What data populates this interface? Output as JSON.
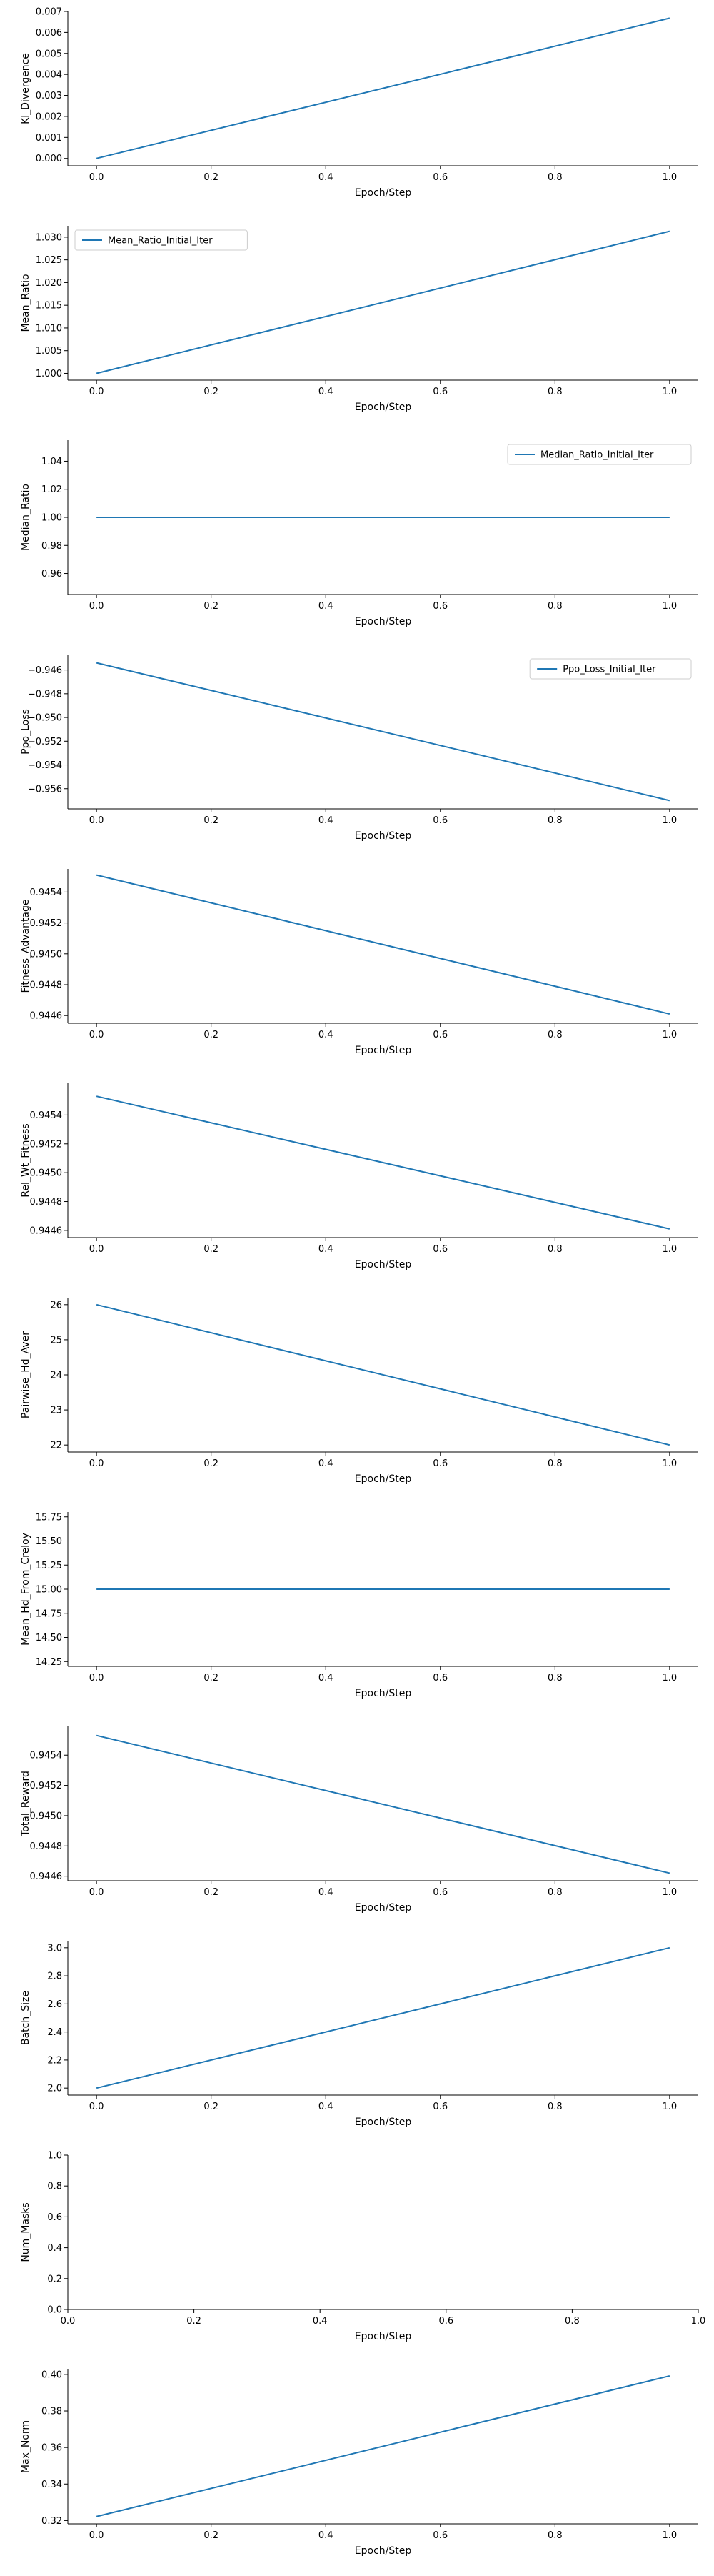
{
  "colors": {
    "line": "#1f77b4",
    "axis": "#000000",
    "legend_border": "#cccccc"
  },
  "chart_data": [
    {
      "type": "line",
      "xlabel": "Epoch/Step",
      "ylabel": "Kl_Divergence",
      "xlim": [
        -0.05,
        1.05
      ],
      "ylim": [
        -0.00035,
        0.007
      ],
      "xticks": [
        0.0,
        0.2,
        0.4,
        0.6,
        0.8,
        1.0
      ],
      "xtick_labels": [
        "0.0",
        "0.2",
        "0.4",
        "0.6",
        "0.8",
        "1.0"
      ],
      "yticks": [
        0.0,
        0.001,
        0.002,
        0.003,
        0.004,
        0.005,
        0.006,
        0.007
      ],
      "ytick_labels": [
        "0.000",
        "0.001",
        "0.002",
        "0.003",
        "0.004",
        "0.005",
        "0.006",
        "0.007"
      ],
      "legend": "none",
      "series": [
        {
          "x": [
            0.0,
            1.0
          ],
          "y": [
            0.0,
            0.00668
          ]
        }
      ]
    },
    {
      "type": "line",
      "xlabel": "Epoch/Step",
      "ylabel": "Mean_Ratio",
      "xlim": [
        -0.05,
        1.05
      ],
      "ylim": [
        0.9985,
        1.0325
      ],
      "xticks": [
        0.0,
        0.2,
        0.4,
        0.6,
        0.8,
        1.0
      ],
      "xtick_labels": [
        "0.0",
        "0.2",
        "0.4",
        "0.6",
        "0.8",
        "1.0"
      ],
      "yticks": [
        1.0,
        1.005,
        1.01,
        1.015,
        1.02,
        1.025,
        1.03
      ],
      "ytick_labels": [
        "1.000",
        "1.005",
        "1.010",
        "1.015",
        "1.020",
        "1.025",
        "1.030"
      ],
      "legend": "top-left",
      "series": [
        {
          "name": "Mean_Ratio_Initial_Iter",
          "x": [
            0.0,
            1.0
          ],
          "y": [
            1.0,
            1.0313
          ]
        }
      ]
    },
    {
      "type": "line",
      "xlabel": "Epoch/Step",
      "ylabel": "Median_Ratio",
      "xlim": [
        -0.05,
        1.05
      ],
      "ylim": [
        0.945,
        1.055
      ],
      "xticks": [
        0.0,
        0.2,
        0.4,
        0.6,
        0.8,
        1.0
      ],
      "xtick_labels": [
        "0.0",
        "0.2",
        "0.4",
        "0.6",
        "0.8",
        "1.0"
      ],
      "yticks": [
        0.96,
        0.98,
        1.0,
        1.02,
        1.04
      ],
      "ytick_labels": [
        "0.96",
        "0.98",
        "1.00",
        "1.02",
        "1.04"
      ],
      "legend": "top-right",
      "series": [
        {
          "name": "Median_Ratio_Initial_Iter",
          "x": [
            0.0,
            1.0
          ],
          "y": [
            1.0,
            1.0
          ]
        }
      ]
    },
    {
      "type": "line",
      "xlabel": "Epoch/Step",
      "ylabel": "Ppo_Loss",
      "xlim": [
        -0.05,
        1.05
      ],
      "ylim": [
        -0.9577,
        -0.9447
      ],
      "xticks": [
        0.0,
        0.2,
        0.4,
        0.6,
        0.8,
        1.0
      ],
      "xtick_labels": [
        "0.0",
        "0.2",
        "0.4",
        "0.6",
        "0.8",
        "1.0"
      ],
      "yticks": [
        -0.946,
        -0.948,
        -0.95,
        -0.952,
        -0.954,
        -0.956
      ],
      "ytick_labels": [
        "−0.946",
        "−0.948",
        "−0.950",
        "−0.952",
        "−0.954",
        "−0.956"
      ],
      "legend": "top-right",
      "series": [
        {
          "name": "Ppo_Loss_Initial_Iter",
          "x": [
            0.0,
            1.0
          ],
          "y": [
            -0.9454,
            -0.957
          ]
        }
      ]
    },
    {
      "type": "line",
      "xlabel": "Epoch/Step",
      "ylabel": "Fitness_Advantage",
      "xlim": [
        -0.05,
        1.05
      ],
      "ylim": [
        0.94455,
        0.94555
      ],
      "xticks": [
        0.0,
        0.2,
        0.4,
        0.6,
        0.8,
        1.0
      ],
      "xtick_labels": [
        "0.0",
        "0.2",
        "0.4",
        "0.6",
        "0.8",
        "1.0"
      ],
      "yticks": [
        0.9446,
        0.9448,
        0.945,
        0.9452,
        0.9454
      ],
      "ytick_labels": [
        "0.9446",
        "0.9448",
        "0.9450",
        "0.9452",
        "0.9454"
      ],
      "legend": "none",
      "series": [
        {
          "x": [
            0.0,
            1.0
          ],
          "y": [
            0.94551,
            0.94461
          ]
        }
      ]
    },
    {
      "type": "line",
      "xlabel": "Epoch/Step",
      "ylabel": "Rel_Wt_Fitness",
      "xlim": [
        -0.05,
        1.05
      ],
      "ylim": [
        0.94455,
        0.94562
      ],
      "xticks": [
        0.0,
        0.2,
        0.4,
        0.6,
        0.8,
        1.0
      ],
      "xtick_labels": [
        "0.0",
        "0.2",
        "0.4",
        "0.6",
        "0.8",
        "1.0"
      ],
      "yticks": [
        0.9446,
        0.9448,
        0.945,
        0.9452,
        0.9454
      ],
      "ytick_labels": [
        "0.9446",
        "0.9448",
        "0.9450",
        "0.9452",
        "0.9454"
      ],
      "legend": "none",
      "series": [
        {
          "x": [
            0.0,
            1.0
          ],
          "y": [
            0.94553,
            0.94461
          ]
        }
      ]
    },
    {
      "type": "line",
      "xlabel": "Epoch/Step",
      "ylabel": "Pairwise_Hd_Aver",
      "xlim": [
        -0.05,
        1.05
      ],
      "ylim": [
        21.8,
        26.2
      ],
      "xticks": [
        0.0,
        0.2,
        0.4,
        0.6,
        0.8,
        1.0
      ],
      "xtick_labels": [
        "0.0",
        "0.2",
        "0.4",
        "0.6",
        "0.8",
        "1.0"
      ],
      "yticks": [
        22,
        23,
        24,
        25,
        26
      ],
      "ytick_labels": [
        "22",
        "23",
        "24",
        "25",
        "26"
      ],
      "legend": "none",
      "series": [
        {
          "x": [
            0.0,
            1.0
          ],
          "y": [
            26.0,
            22.0
          ]
        }
      ]
    },
    {
      "type": "line",
      "xlabel": "Epoch/Step",
      "ylabel": "Mean_Hd_From_Creloy",
      "xlim": [
        -0.05,
        1.05
      ],
      "ylim": [
        14.2,
        15.8
      ],
      "xticks": [
        0.0,
        0.2,
        0.4,
        0.6,
        0.8,
        1.0
      ],
      "xtick_labels": [
        "0.0",
        "0.2",
        "0.4",
        "0.6",
        "0.8",
        "1.0"
      ],
      "yticks": [
        14.25,
        14.5,
        14.75,
        15.0,
        15.25,
        15.5,
        15.75
      ],
      "ytick_labels": [
        "14.25",
        "14.50",
        "14.75",
        "15.00",
        "15.25",
        "15.50",
        "15.75"
      ],
      "legend": "none",
      "series": [
        {
          "x": [
            0.0,
            1.0
          ],
          "y": [
            15.0,
            15.0
          ]
        }
      ]
    },
    {
      "type": "line",
      "xlabel": "Epoch/Step",
      "ylabel": "Total_Reward",
      "xlim": [
        -0.05,
        1.05
      ],
      "ylim": [
        0.94457,
        0.94559
      ],
      "xticks": [
        0.0,
        0.2,
        0.4,
        0.6,
        0.8,
        1.0
      ],
      "xtick_labels": [
        "0.0",
        "0.2",
        "0.4",
        "0.6",
        "0.8",
        "1.0"
      ],
      "yticks": [
        0.9446,
        0.9448,
        0.945,
        0.9452,
        0.9454
      ],
      "ytick_labels": [
        "0.9446",
        "0.9448",
        "0.9450",
        "0.9452",
        "0.9454"
      ],
      "legend": "none",
      "series": [
        {
          "x": [
            0.0,
            1.0
          ],
          "y": [
            0.94553,
            0.94462
          ]
        }
      ]
    },
    {
      "type": "line",
      "xlabel": "Epoch/Step",
      "ylabel": "Batch_Size",
      "xlim": [
        -0.05,
        1.05
      ],
      "ylim": [
        1.95,
        3.05
      ],
      "xticks": [
        0.0,
        0.2,
        0.4,
        0.6,
        0.8,
        1.0
      ],
      "xtick_labels": [
        "0.0",
        "0.2",
        "0.4",
        "0.6",
        "0.8",
        "1.0"
      ],
      "yticks": [
        2.0,
        2.2,
        2.4,
        2.6,
        2.8,
        3.0
      ],
      "ytick_labels": [
        "2.0",
        "2.2",
        "2.4",
        "2.6",
        "2.8",
        "3.0"
      ],
      "legend": "none",
      "series": [
        {
          "x": [
            0.0,
            1.0
          ],
          "y": [
            2.0,
            3.0
          ]
        }
      ]
    },
    {
      "type": "line",
      "xlabel": "Epoch/Step",
      "ylabel": "Num_Masks",
      "xlim": [
        0.0,
        1.0
      ],
      "ylim": [
        0.0,
        1.0
      ],
      "xticks": [
        0.0,
        0.2,
        0.4,
        0.6,
        0.8,
        1.0
      ],
      "xtick_labels": [
        "0.0",
        "0.2",
        "0.4",
        "0.6",
        "0.8",
        "1.0"
      ],
      "yticks": [
        0.0,
        0.2,
        0.4,
        0.6,
        0.8,
        1.0
      ],
      "ytick_labels": [
        "0.0",
        "0.2",
        "0.4",
        "0.6",
        "0.8",
        "1.0"
      ],
      "legend": "none",
      "series": []
    },
    {
      "type": "line",
      "xlabel": "Epoch/Step",
      "ylabel": "Max_Norm",
      "xlim": [
        -0.05,
        1.05
      ],
      "ylim": [
        0.3182,
        0.4027
      ],
      "xticks": [
        0.0,
        0.2,
        0.4,
        0.6,
        0.8,
        1.0
      ],
      "xtick_labels": [
        "0.0",
        "0.2",
        "0.4",
        "0.6",
        "0.8",
        "1.0"
      ],
      "yticks": [
        0.32,
        0.34,
        0.36,
        0.38,
        0.4
      ],
      "ytick_labels": [
        "0.32",
        "0.34",
        "0.36",
        "0.38",
        "0.40"
      ],
      "legend": "none",
      "series": [
        {
          "x": [
            0.0,
            1.0
          ],
          "y": [
            0.3222,
            0.3992
          ]
        }
      ]
    }
  ]
}
